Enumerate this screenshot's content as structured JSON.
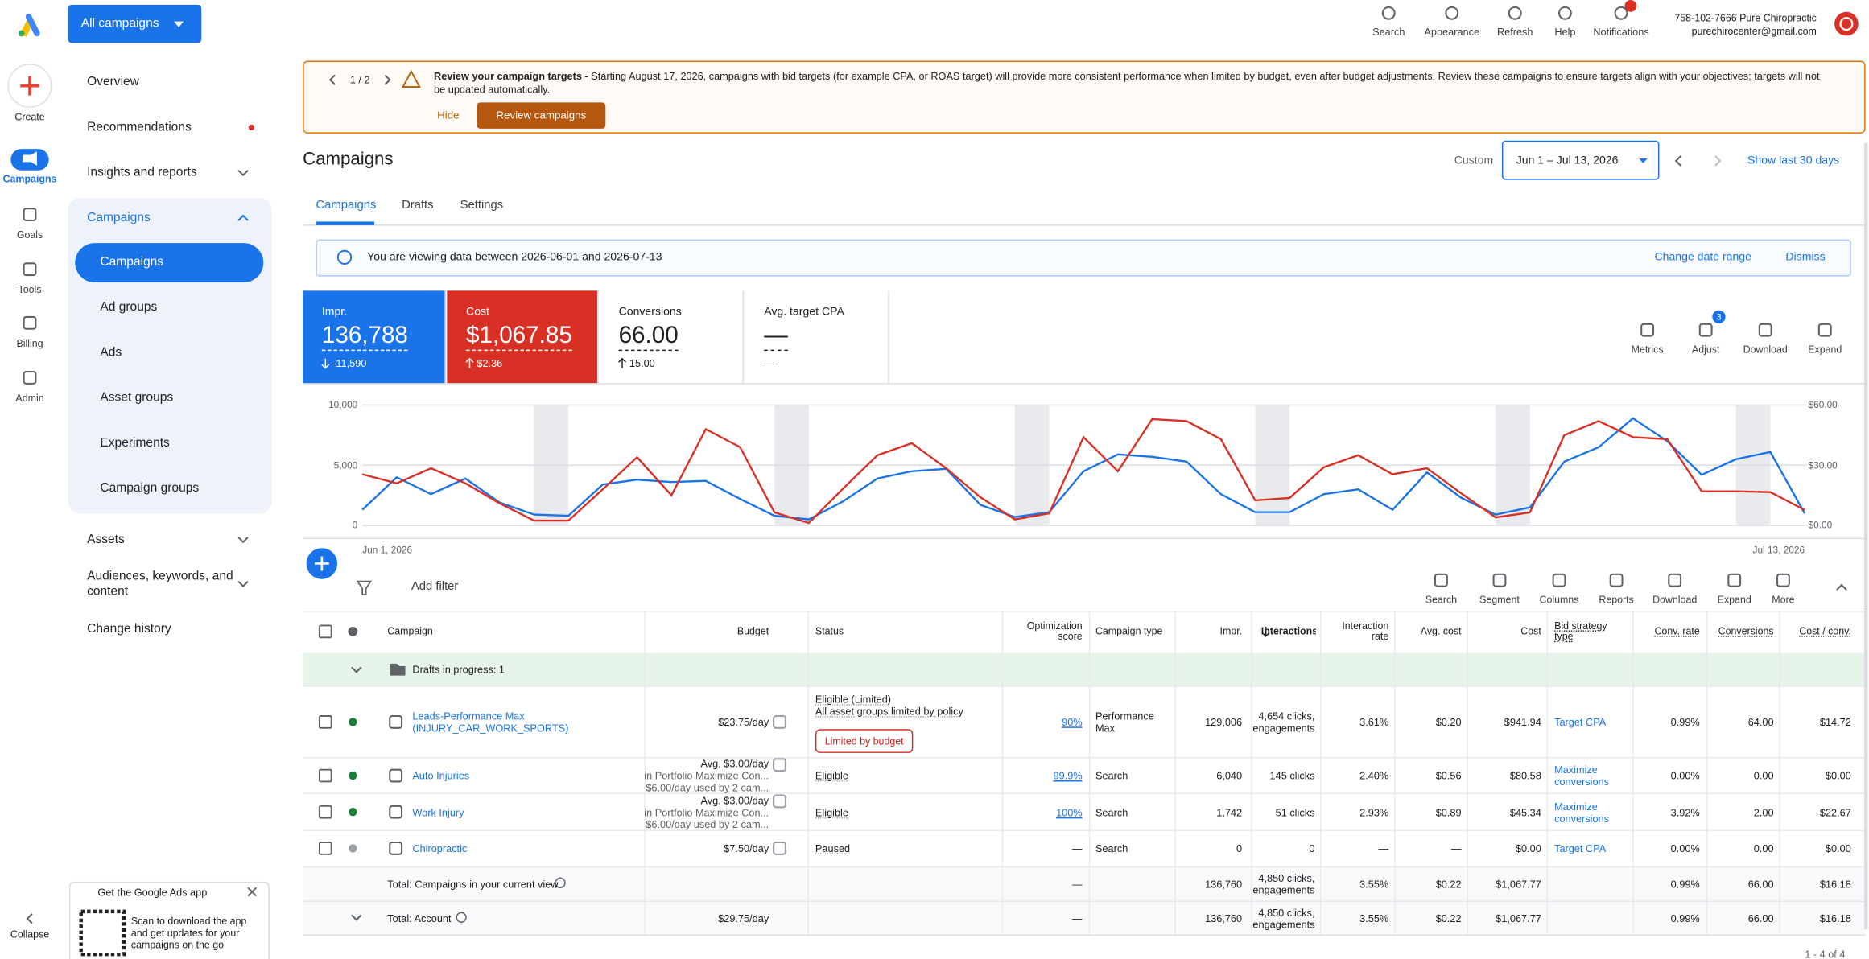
{
  "header": {
    "account_selector": "All campaigns",
    "actions": [
      "Search",
      "Appearance",
      "Refresh",
      "Help",
      "Notifications"
    ],
    "account_name": "758-102-7666 Pure Chiropractic",
    "account_email": "purechirocenter@gmail.com"
  },
  "rail": {
    "create": "Create",
    "items": [
      "Campaigns",
      "Goals",
      "Tools",
      "Billing",
      "Admin"
    ],
    "collapse": "Collapse"
  },
  "nav": {
    "items": [
      "Overview",
      "Recommendations",
      "Insights and reports"
    ],
    "campaigns_group": "Campaigns",
    "sub_items": [
      "Campaigns",
      "Ad groups",
      "Ads",
      "Asset groups",
      "Experiments",
      "Campaign groups"
    ],
    "more_items": [
      "Assets",
      "Audiences, keywords, and content",
      "Change history"
    ]
  },
  "app_promo": {
    "title": "Get the Google Ads app",
    "text": "Scan to download the app and get updates for your campaigns on the go"
  },
  "banner": {
    "pager": "1 / 2",
    "title": "Review your campaign targets",
    "text": "- Starting August 17, 2026, campaigns with bid targets (for example CPA, or ROAS target) will provide more consistent performance when limited by budget, even after budget adjustments. Review these campaigns to ensure targets align with your objectives; targets will not be updated automatically.",
    "hide": "Hide",
    "cta": "Review campaigns"
  },
  "page": {
    "title": "Campaigns",
    "date_label": "Custom",
    "date_range": "Jun 1 – Jul 13, 2026",
    "show_last": "Show last 30 days",
    "tabs": [
      "Campaigns",
      "Drafts",
      "Settings"
    ]
  },
  "info": {
    "text": "You are viewing data between 2026-06-01 and 2026-07-13",
    "change": "Change date range",
    "dismiss": "Dismiss"
  },
  "metrics": [
    {
      "label": "Impr.",
      "value": "136,788",
      "delta": "-11,590"
    },
    {
      "label": "Cost",
      "value": "$1,067.85",
      "delta": "$2.36"
    },
    {
      "label": "Conversions",
      "value": "66.00",
      "delta": "15.00"
    },
    {
      "label": "Avg. target CPA",
      "value": "—",
      "delta": "—"
    }
  ],
  "metric_tools": [
    "Metrics",
    "Adjust",
    "Download",
    "Expand"
  ],
  "adjust_badge": "3",
  "chart_data": {
    "type": "line",
    "grid": true,
    "categories": [
      "Jun 1, 2026",
      null,
      null,
      null,
      null,
      null,
      null,
      null,
      null,
      null,
      null,
      null,
      null,
      null,
      null,
      null,
      null,
      null,
      null,
      null,
      null,
      null,
      null,
      null,
      null,
      null,
      null,
      null,
      null,
      null,
      null,
      null,
      null,
      null,
      null,
      null,
      null,
      null,
      null,
      null,
      null,
      null,
      "Jul 13, 2026"
    ],
    "ylim": [
      0,
      10000
    ],
    "yticks": [
      0,
      {
        "value": 5000,
        "label": "5,000"
      },
      {
        "value": 10000,
        "label": "10,000"
      }
    ],
    "y2lim": [
      0,
      60
    ],
    "y2ticks": [
      {
        "value": 0,
        "label": "$0.00"
      },
      {
        "value": 30,
        "label": "$30.00"
      },
      {
        "value": 60,
        "label": "$60.00"
      }
    ],
    "series": [
      {
        "color": "#1a73e8",
        "values": [
          1300,
          4000,
          2600,
          3900,
          1900,
          900,
          800,
          3400,
          3800,
          3600,
          3700,
          2200,
          800,
          500,
          2000,
          3900,
          4500,
          4700,
          1700,
          700,
          1100,
          4500,
          5900,
          5700,
          5300,
          2600,
          1100,
          1100,
          2600,
          3000,
          1300,
          4400,
          2300,
          900,
          1500,
          5300,
          6500,
          8900,
          7000,
          4200,
          5500,
          6100,
          1000
        ]
      },
      {
        "color": "#d93025",
        "axis": "y2",
        "values": [
          25.5,
          21,
          28.5,
          21,
          11,
          2.4,
          2.4,
          18,
          34,
          15,
          48,
          39,
          6.5,
          1.2,
          18.4,
          35,
          41,
          28.5,
          14,
          3,
          6,
          44,
          27,
          53,
          52,
          43,
          12.5,
          13.7,
          29,
          35,
          25.5,
          28.5,
          16,
          4,
          6.5,
          45,
          52,
          44,
          43,
          17,
          17,
          16.6,
          7.7
        ]
      }
    ]
  },
  "toolbar": {
    "filter": "Add filter",
    "actions": [
      "Search",
      "Segment",
      "Columns",
      "Reports",
      "Download",
      "Expand",
      "More"
    ]
  },
  "table": {
    "columns": [
      "Campaign",
      "Budget",
      "Status",
      "Optimization score",
      "Campaign type",
      "Impr.",
      "Interactions",
      "Interaction rate",
      "Avg. cost",
      "Cost",
      "Bid strategy type",
      "Conv. rate",
      "Conversions",
      "Cost / conv."
    ],
    "drafts": "Drafts in progress: 1",
    "rows": [
      {
        "campaign": "Leads-Performance Max (INJURY_CAR_WORK_SPORTS)",
        "budget": [
          "$23.75/day"
        ],
        "status": [
          "Eligible (Limited)",
          "All asset groups limited by policy"
        ],
        "status_chip": "Limited by budget",
        "optimization_score": "90%",
        "campaign_type": "Performance Max",
        "impr": "129,006",
        "interactions": "4,654 clicks, engagements",
        "interaction_rate": "3.61%",
        "avg_cost": "$0.20",
        "cost": "$941.94",
        "bid_strategy": "Target CPA",
        "conv_rate": "0.99%",
        "conversions": "64.00",
        "cost_per_conv": "$14.72"
      },
      {
        "campaign": "Auto Injuries",
        "budget": [
          "Avg. $3.00/day",
          "in Portfolio Maximize Con...",
          "$6.00/day used by 2 cam..."
        ],
        "status": [
          "Eligible"
        ],
        "optimization_score": "99.9%",
        "campaign_type": "Search",
        "impr": "6,040",
        "interactions": "145 clicks",
        "interaction_rate": "2.40%",
        "avg_cost": "$0.56",
        "cost": "$80.58",
        "bid_strategy": "Maximize conversions",
        "conv_rate": "0.00%",
        "conversions": "0.00",
        "cost_per_conv": "$0.00"
      },
      {
        "campaign": "Work Injury",
        "budget": [
          "Avg. $3.00/day",
          "in Portfolio Maximize Con...",
          "$6.00/day used by 2 cam..."
        ],
        "status": [
          "Eligible"
        ],
        "optimization_score": "100%",
        "campaign_type": "Search",
        "impr": "1,742",
        "interactions": "51 clicks",
        "interaction_rate": "2.93%",
        "avg_cost": "$0.89",
        "cost": "$45.34",
        "bid_strategy": "Maximize conversions",
        "conv_rate": "3.92%",
        "conversions": "2.00",
        "cost_per_conv": "$22.67"
      },
      {
        "campaign": "Chiropractic",
        "budget": [
          "$7.50/day"
        ],
        "status": [
          "Paused"
        ],
        "optimization_score": "—",
        "campaign_type": "Search",
        "impr": "0",
        "interactions": "0",
        "interaction_rate": "—",
        "avg_cost": "—",
        "cost": "$0.00",
        "bid_strategy": "Target CPA",
        "conv_rate": "0.00%",
        "conversions": "0.00",
        "cost_per_conv": "$0.00"
      }
    ],
    "totals": [
      {
        "campaign": "Total: Campaigns in your current view",
        "optimization_score": "—",
        "impr": "136,760",
        "interactions": "4,850 clicks, engagements",
        "interaction_rate": "3.55%",
        "avg_cost": "$0.22",
        "cost": "$1,067.77",
        "conv_rate": "0.99%",
        "conversions": "66.00",
        "cost_per_conv": "$16.18"
      },
      {
        "campaign": "Total: Account",
        "budget": [
          "$29.75/day"
        ],
        "optimization_score": "—",
        "impr": "136,760",
        "interactions": "4,850 clicks, engagements",
        "interaction_rate": "3.55%",
        "avg_cost": "$0.22",
        "cost": "$1,067.77",
        "conv_rate": "0.99%",
        "conversions": "66.00",
        "cost_per_conv": "$16.18"
      }
    ],
    "pagination": "1 - 4 of 4"
  }
}
